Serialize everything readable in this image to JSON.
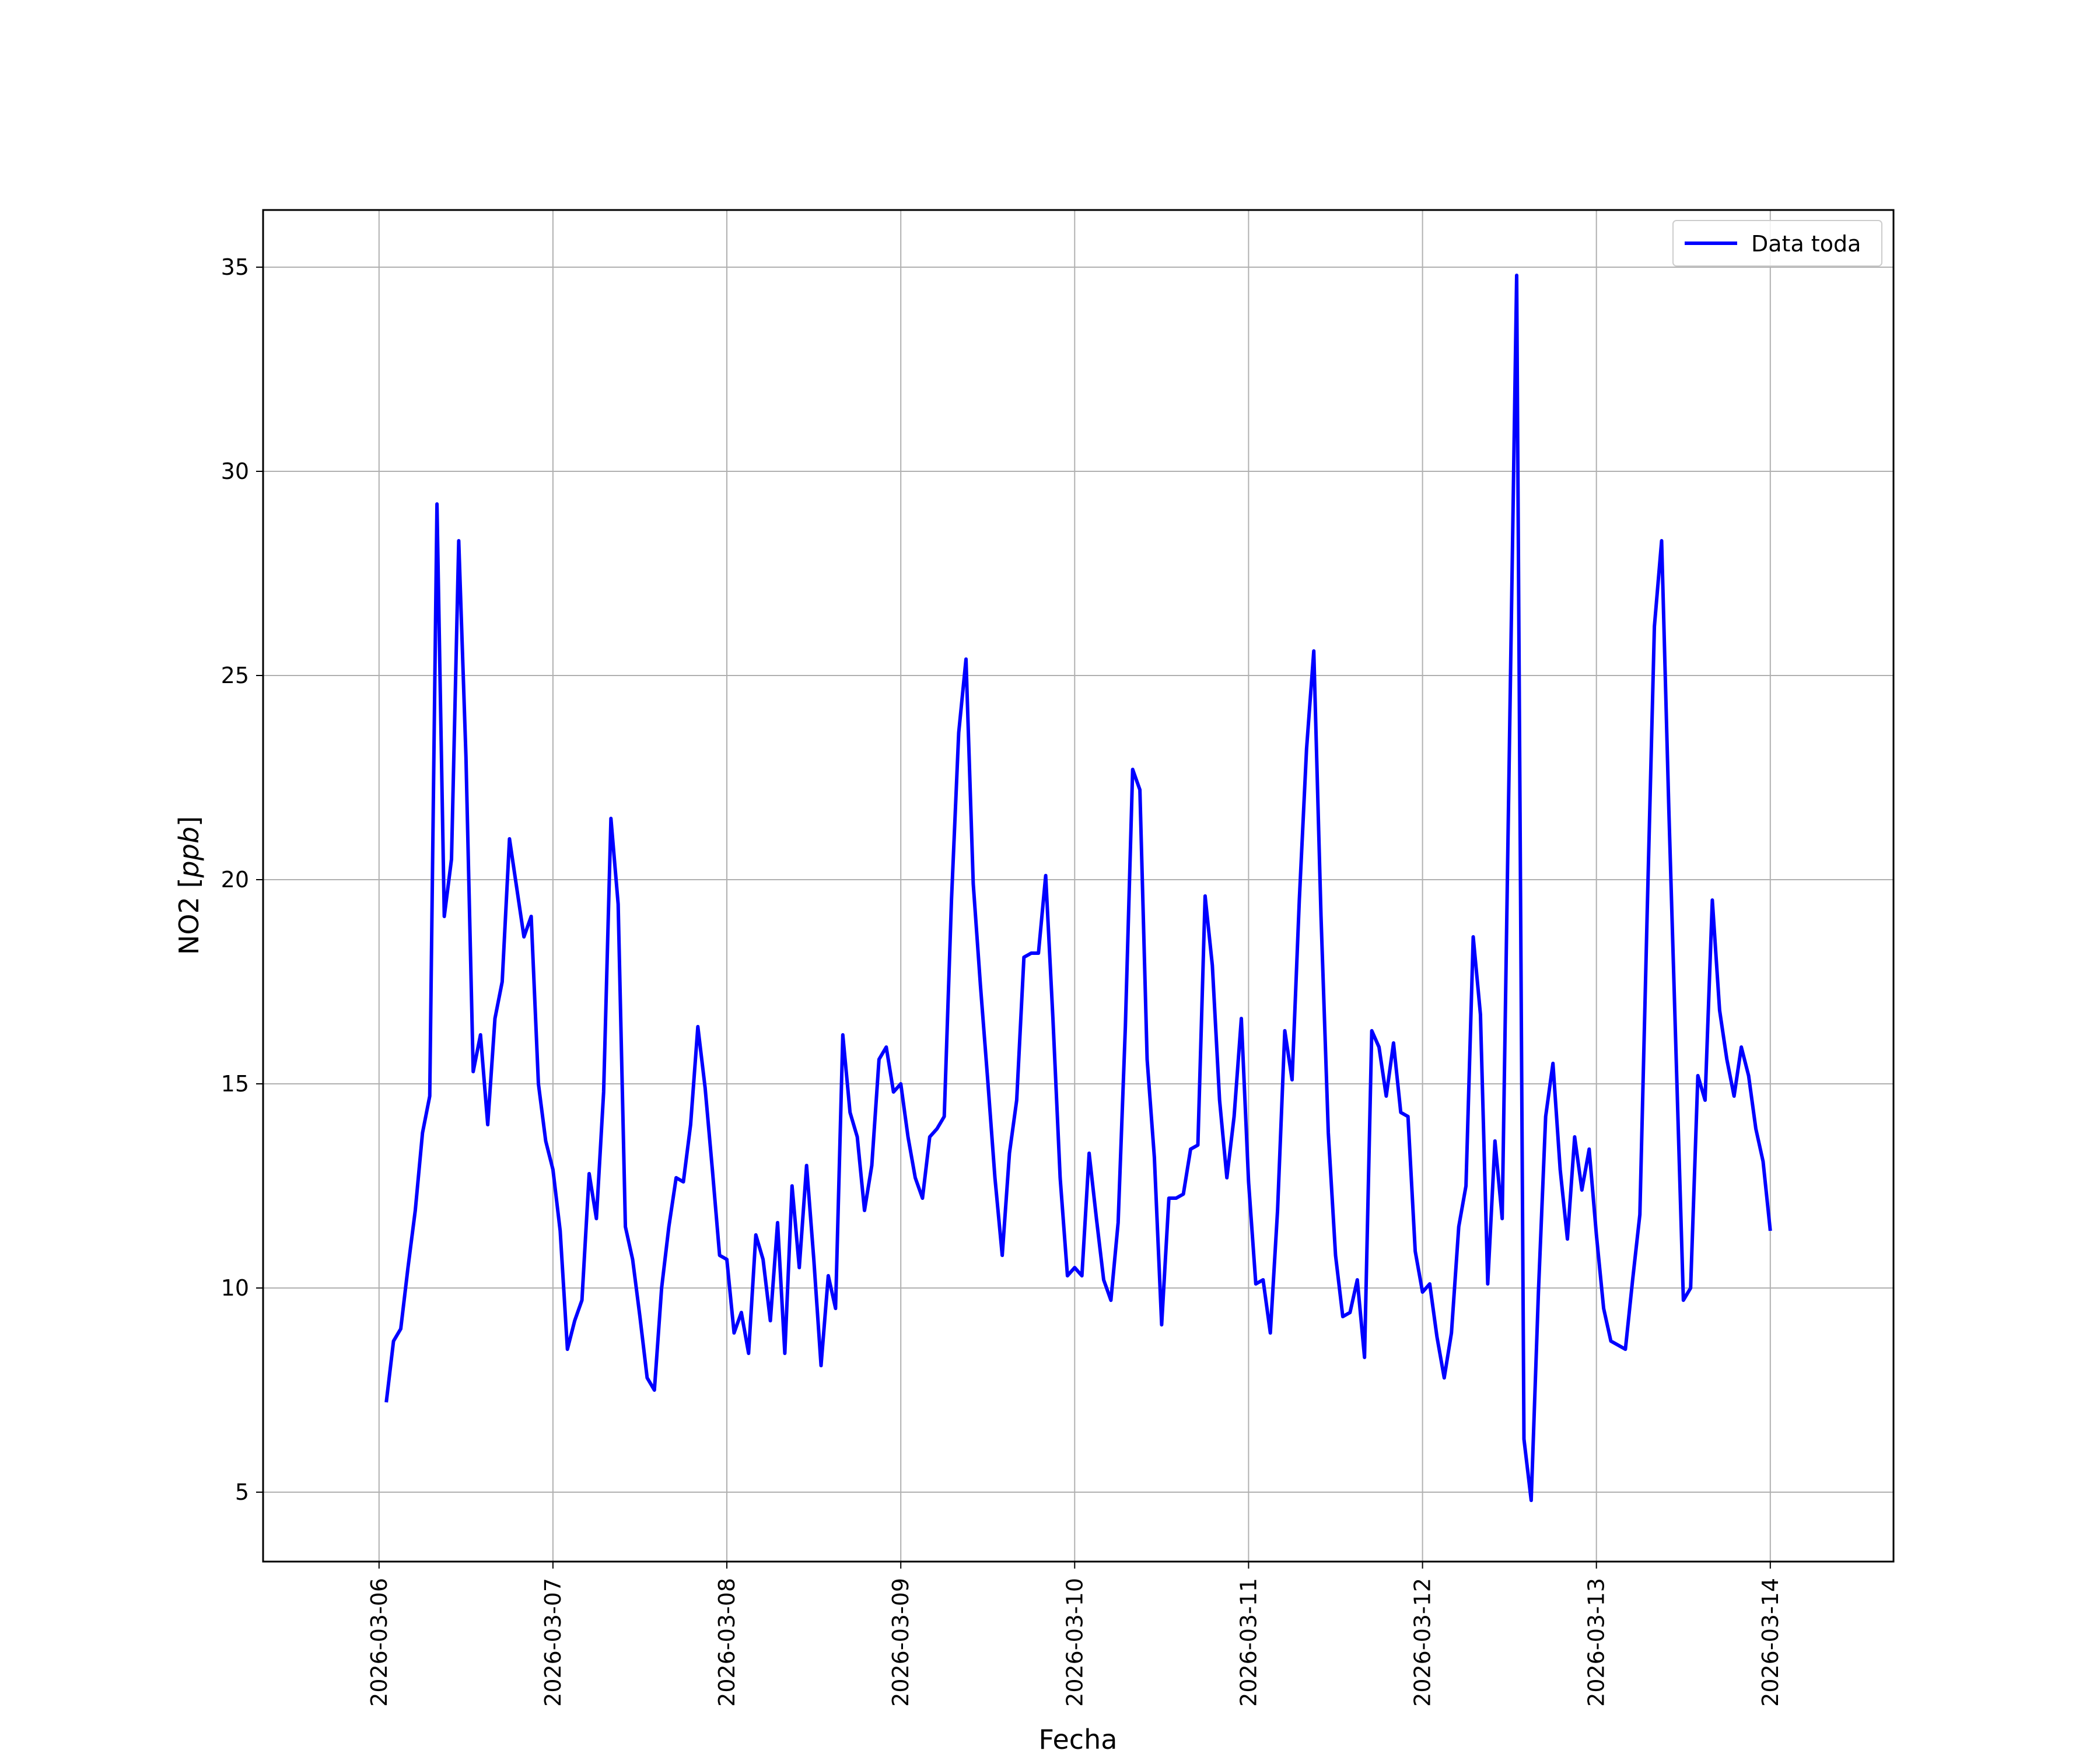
{
  "chart_data": {
    "type": "line",
    "title": "",
    "xlabel": "Fecha",
    "ylabel": "NO2 [ppb]",
    "ylabel_parts": {
      "prefix": "NO2 [",
      "unit_italic": "ppb",
      "suffix": "]"
    },
    "x_ticks": [
      "2026-03-06",
      "2026-03-07",
      "2026-03-08",
      "2026-03-09",
      "2026-03-10",
      "2026-03-11",
      "2026-03-12",
      "2026-03-13",
      "2026-03-14"
    ],
    "y_ticks": [
      5,
      10,
      15,
      20,
      25,
      30,
      35
    ],
    "y_tick_labels": [
      "5",
      "10",
      "15",
      "20",
      "25",
      "30",
      "35"
    ],
    "xlim": [
      "2026-03-05T08:00",
      "2026-03-14T17:00"
    ],
    "ylim": [
      3.3,
      36.4
    ],
    "grid": true,
    "legend_position": "top-right",
    "series": [
      {
        "name": "Data toda",
        "color": "#0000ff",
        "x": [
          "2026-03-06T01:00",
          "2026-03-06T02:00",
          "2026-03-06T03:00",
          "2026-03-06T04:00",
          "2026-03-06T05:00",
          "2026-03-06T06:00",
          "2026-03-06T07:00",
          "2026-03-06T08:00",
          "2026-03-06T09:00",
          "2026-03-06T10:00",
          "2026-03-06T11:00",
          "2026-03-06T12:00",
          "2026-03-06T13:00",
          "2026-03-06T14:00",
          "2026-03-06T15:00",
          "2026-03-06T16:00",
          "2026-03-06T17:00",
          "2026-03-06T18:00",
          "2026-03-06T19:00",
          "2026-03-06T20:00",
          "2026-03-06T21:00",
          "2026-03-06T22:00",
          "2026-03-06T23:00",
          "2026-03-07T00:00",
          "2026-03-07T01:00",
          "2026-03-07T02:00",
          "2026-03-07T03:00",
          "2026-03-07T04:00",
          "2026-03-07T05:00",
          "2026-03-07T06:00",
          "2026-03-07T07:00",
          "2026-03-07T08:00",
          "2026-03-07T09:00",
          "2026-03-07T10:00",
          "2026-03-07T11:00",
          "2026-03-07T12:00",
          "2026-03-07T13:00",
          "2026-03-07T14:00",
          "2026-03-07T15:00",
          "2026-03-07T16:00",
          "2026-03-07T17:00",
          "2026-03-07T18:00",
          "2026-03-07T19:00",
          "2026-03-07T20:00",
          "2026-03-07T21:00",
          "2026-03-07T22:00",
          "2026-03-07T23:00",
          "2026-03-08T00:00",
          "2026-03-08T01:00",
          "2026-03-08T02:00",
          "2026-03-08T03:00",
          "2026-03-08T04:00",
          "2026-03-08T05:00",
          "2026-03-08T06:00",
          "2026-03-08T07:00",
          "2026-03-08T08:00",
          "2026-03-08T09:00",
          "2026-03-08T10:00",
          "2026-03-08T11:00",
          "2026-03-08T12:00",
          "2026-03-08T13:00",
          "2026-03-08T14:00",
          "2026-03-08T15:00",
          "2026-03-08T16:00",
          "2026-03-08T17:00",
          "2026-03-08T18:00",
          "2026-03-08T19:00",
          "2026-03-08T20:00",
          "2026-03-08T21:00",
          "2026-03-08T22:00",
          "2026-03-08T23:00",
          "2026-03-09T00:00",
          "2026-03-09T01:00",
          "2026-03-09T02:00",
          "2026-03-09T03:00",
          "2026-03-09T04:00",
          "2026-03-09T05:00",
          "2026-03-09T06:00",
          "2026-03-09T07:00",
          "2026-03-09T08:00",
          "2026-03-09T09:00",
          "2026-03-09T10:00",
          "2026-03-09T11:00",
          "2026-03-09T12:00",
          "2026-03-09T13:00",
          "2026-03-09T14:00",
          "2026-03-09T15:00",
          "2026-03-09T16:00",
          "2026-03-09T17:00",
          "2026-03-09T18:00",
          "2026-03-09T19:00",
          "2026-03-09T20:00",
          "2026-03-09T21:00",
          "2026-03-09T22:00",
          "2026-03-09T23:00",
          "2026-03-10T00:00",
          "2026-03-10T01:00",
          "2026-03-10T02:00",
          "2026-03-10T03:00",
          "2026-03-10T04:00",
          "2026-03-10T05:00",
          "2026-03-10T06:00",
          "2026-03-10T07:00",
          "2026-03-10T08:00",
          "2026-03-10T09:00",
          "2026-03-10T10:00",
          "2026-03-10T11:00",
          "2026-03-10T12:00",
          "2026-03-10T13:00",
          "2026-03-10T14:00",
          "2026-03-10T15:00",
          "2026-03-10T16:00",
          "2026-03-10T17:00",
          "2026-03-10T18:00",
          "2026-03-10T19:00",
          "2026-03-10T20:00",
          "2026-03-10T21:00",
          "2026-03-10T22:00",
          "2026-03-10T23:00",
          "2026-03-11T00:00",
          "2026-03-11T01:00",
          "2026-03-11T02:00",
          "2026-03-11T03:00",
          "2026-03-11T04:00",
          "2026-03-11T05:00",
          "2026-03-11T06:00",
          "2026-03-11T07:00",
          "2026-03-11T08:00",
          "2026-03-11T09:00",
          "2026-03-11T10:00",
          "2026-03-11T11:00",
          "2026-03-11T12:00",
          "2026-03-11T13:00",
          "2026-03-11T14:00",
          "2026-03-11T15:00",
          "2026-03-11T16:00",
          "2026-03-11T17:00",
          "2026-03-11T18:00",
          "2026-03-11T19:00",
          "2026-03-11T20:00",
          "2026-03-11T21:00",
          "2026-03-11T22:00",
          "2026-03-11T23:00",
          "2026-03-12T00:00",
          "2026-03-12T01:00",
          "2026-03-12T02:00",
          "2026-03-12T03:00",
          "2026-03-12T04:00",
          "2026-03-12T05:00",
          "2026-03-12T06:00",
          "2026-03-12T07:00",
          "2026-03-12T08:00",
          "2026-03-12T09:00",
          "2026-03-12T10:00",
          "2026-03-12T11:00",
          "2026-03-12T12:00",
          "2026-03-12T13:00",
          "2026-03-12T14:00",
          "2026-03-12T15:00",
          "2026-03-12T16:00",
          "2026-03-12T17:00",
          "2026-03-12T18:00",
          "2026-03-12T19:00",
          "2026-03-12T20:00",
          "2026-03-12T21:00",
          "2026-03-12T22:00",
          "2026-03-12T23:00",
          "2026-03-13T00:00",
          "2026-03-13T01:00",
          "2026-03-13T02:00",
          "2026-03-13T03:00",
          "2026-03-13T04:00",
          "2026-03-13T05:00",
          "2026-03-13T06:00",
          "2026-03-13T07:00",
          "2026-03-13T08:00",
          "2026-03-13T09:00",
          "2026-03-13T10:00",
          "2026-03-13T11:00",
          "2026-03-13T12:00",
          "2026-03-13T13:00",
          "2026-03-13T14:00",
          "2026-03-13T15:00",
          "2026-03-13T16:00",
          "2026-03-13T17:00",
          "2026-03-13T18:00",
          "2026-03-13T19:00",
          "2026-03-13T20:00",
          "2026-03-13T21:00",
          "2026-03-13T22:00",
          "2026-03-13T23:00",
          "2026-03-14T00:00"
        ],
        "y": [
          7.2,
          8.7,
          9.0,
          10.5,
          11.9,
          13.8,
          14.7,
          29.2,
          19.1,
          20.5,
          28.3,
          23.0,
          15.3,
          16.2,
          14.0,
          16.6,
          17.5,
          21.0,
          19.8,
          18.6,
          19.1,
          15.0,
          13.6,
          12.9,
          11.4,
          8.5,
          9.2,
          9.7,
          12.8,
          11.7,
          14.8,
          21.5,
          19.4,
          11.5,
          10.7,
          9.3,
          7.8,
          7.5,
          10.0,
          11.5,
          12.7,
          12.6,
          14.0,
          16.4,
          14.9,
          12.9,
          10.8,
          10.7,
          8.9,
          9.4,
          8.4,
          11.3,
          10.7,
          9.2,
          11.6,
          8.4,
          12.5,
          10.5,
          13.0,
          10.7,
          8.1,
          10.3,
          9.5,
          16.2,
          14.3,
          13.7,
          11.9,
          13.0,
          15.6,
          15.9,
          14.8,
          15.0,
          13.7,
          12.7,
          12.2,
          13.7,
          13.9,
          14.2,
          19.5,
          23.6,
          25.4,
          19.9,
          17.4,
          15.1,
          12.7,
          10.8,
          13.3,
          14.6,
          18.1,
          18.2,
          18.2,
          20.1,
          16.6,
          12.7,
          10.3,
          10.5,
          10.3,
          13.3,
          11.7,
          10.2,
          9.7,
          11.6,
          16.4,
          22.7,
          22.2,
          15.6,
          13.2,
          9.1,
          12.2,
          12.2,
          12.3,
          13.4,
          13.5,
          19.6,
          17.9,
          14.6,
          12.7,
          14.2,
          16.6,
          12.6,
          10.1,
          10.2,
          8.9,
          11.9,
          16.3,
          15.1,
          19.5,
          23.2,
          25.6,
          19.1,
          13.8,
          10.8,
          9.3,
          9.4,
          10.2,
          8.3,
          16.3,
          15.9,
          14.7,
          16.0,
          14.3,
          14.2,
          10.9,
          9.9,
          10.1,
          8.8,
          7.8,
          8.9,
          11.5,
          12.5,
          18.6,
          16.7,
          10.1,
          13.6,
          11.7,
          23.3,
          34.8,
          6.3,
          4.8,
          9.9,
          14.2,
          15.5,
          12.9,
          11.2,
          13.7,
          12.4,
          13.4,
          11.3,
          9.5,
          8.7,
          8.6,
          8.5,
          10.2,
          11.8,
          19.1,
          26.2,
          28.3,
          21.7,
          15.7,
          9.7,
          10.0,
          15.2,
          14.6,
          19.5,
          16.8,
          15.6,
          14.7,
          15.9,
          15.2,
          13.9,
          13.1,
          11.4
        ]
      }
    ]
  }
}
